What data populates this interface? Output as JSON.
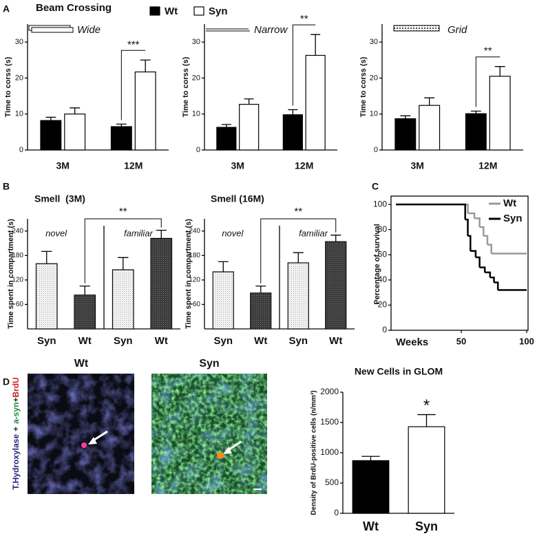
{
  "panel_labels": [
    "A",
    "B",
    "C",
    "D"
  ],
  "images": [
    {
      "label": "Wt"
    },
    {
      "label": "Syn"
    }
  ],
  "stain_label": [
    {
      "text": "T.Hydroxylase",
      "color": "#26267a"
    },
    {
      "text": "+",
      "color": "#222222"
    },
    {
      "text": "a-syn",
      "color": "#1f8a3a"
    },
    {
      "text": "+",
      "color": "#222222"
    },
    {
      "text": "BrdU",
      "color": "#d0202a"
    }
  ],
  "chart_data": [
    {
      "type": "bar",
      "title": "Beam Crossing",
      "condition": "Wide",
      "significance": "***",
      "ylabel": "Time to corss (s)",
      "categories": [
        "3M",
        "12M"
      ],
      "ylim": [
        0,
        35
      ],
      "yticks": [
        0,
        10,
        20,
        30
      ],
      "series": [
        {
          "name": "Wt",
          "color": "#000000",
          "values": [
            8.2,
            6.5
          ],
          "errors": [
            0.9,
            0.7
          ]
        },
        {
          "name": "Syn",
          "color": "#ffffff",
          "values": [
            10.0,
            21.7
          ],
          "errors": [
            1.7,
            3.3
          ]
        }
      ]
    },
    {
      "type": "bar",
      "condition": "Narrow",
      "significance": "**",
      "ylabel": "Time to corss (s)",
      "categories": [
        "3M",
        "12M"
      ],
      "ylim": [
        0,
        35
      ],
      "yticks": [
        0,
        10,
        20,
        30
      ],
      "series": [
        {
          "color": "#000000",
          "values": [
            6.3,
            9.8
          ],
          "errors": [
            0.8,
            1.4
          ]
        },
        {
          "color": "#ffffff",
          "values": [
            12.7,
            26.3
          ],
          "errors": [
            1.5,
            5.8
          ]
        }
      ]
    },
    {
      "type": "bar",
      "condition": "Grid",
      "significance": "**",
      "ylabel": "Time to corss (s)",
      "categories": [
        "3M",
        "12M"
      ],
      "ylim": [
        0,
        35
      ],
      "yticks": [
        0,
        10,
        20,
        30
      ],
      "series": [
        {
          "color": "#000000",
          "values": [
            8.7,
            10.1
          ],
          "errors": [
            0.8,
            0.7
          ]
        },
        {
          "color": "#ffffff",
          "values": [
            12.4,
            20.5
          ],
          "errors": [
            2.1,
            2.7
          ]
        }
      ]
    },
    {
      "type": "bar",
      "title": "Smell  (3M)",
      "ylabel": "Time spent in compartment (s)",
      "regions": [
        "novel",
        "familiar"
      ],
      "significance": "**",
      "categories": [
        "Syn",
        "Wt",
        "Syn",
        "Wt"
      ],
      "values": [
        160,
        83,
        145,
        222
      ],
      "errors": [
        30,
        22,
        30,
        20
      ],
      "colors": [
        "#f2f2f2",
        "#3c3c3c",
        "#f2f2f2",
        "#3c3c3c"
      ],
      "pattern": "dotted",
      "ylim": [
        0,
        270
      ],
      "yticks": [
        60,
        120,
        180,
        240
      ]
    },
    {
      "type": "bar",
      "title": "Smell (16M)",
      "ylabel": "Time spent in compartment (s)",
      "regions": [
        "novel",
        "familiar"
      ],
      "significance": "**",
      "categories": [
        "Syn",
        "Wt",
        "Syn",
        "Wt"
      ],
      "values": [
        140,
        88,
        162,
        214
      ],
      "errors": [
        25,
        17,
        25,
        16
      ],
      "colors": [
        "#f2f2f2",
        "#3c3c3c",
        "#f2f2f2",
        "#3c3c3c"
      ],
      "pattern": "dotted",
      "ylim": [
        0,
        270
      ],
      "yticks": [
        60,
        120,
        180,
        240
      ]
    },
    {
      "type": "line",
      "step": true,
      "ylabel": "Percentage of survival",
      "xlabel": "Weeks",
      "xlim": [
        0,
        100
      ],
      "xticks": [
        50,
        100
      ],
      "ylim": [
        0,
        105
      ],
      "yticks": [
        0,
        20,
        40,
        60,
        80,
        100
      ],
      "series": [
        {
          "name": "Wt",
          "color": "#999999",
          "x": [
            0,
            55,
            60,
            64,
            67,
            70,
            73,
            100
          ],
          "values": [
            100,
            93,
            89,
            82,
            75,
            68,
            61,
            61
          ]
        },
        {
          "name": "Syn",
          "color": "#000000",
          "x": [
            0,
            53,
            55,
            57,
            61,
            64,
            68,
            72,
            75,
            78,
            100
          ],
          "values": [
            100,
            88,
            75,
            63,
            58,
            50,
            46,
            42,
            38,
            32,
            32
          ]
        }
      ]
    },
    {
      "type": "bar",
      "title": "New Cells in GLOM",
      "ylabel": "Density of BrdU-positive cells (n/mm³)",
      "significance": "*",
      "categories": [
        "Wt",
        "Syn"
      ],
      "values": [
        870,
        1430
      ],
      "errors": [
        70,
        200
      ],
      "colors": [
        "#000000",
        "#ffffff"
      ],
      "ylim": [
        0,
        2000
      ],
      "yticks": [
        0,
        500,
        1000,
        1500,
        2000
      ]
    }
  ]
}
